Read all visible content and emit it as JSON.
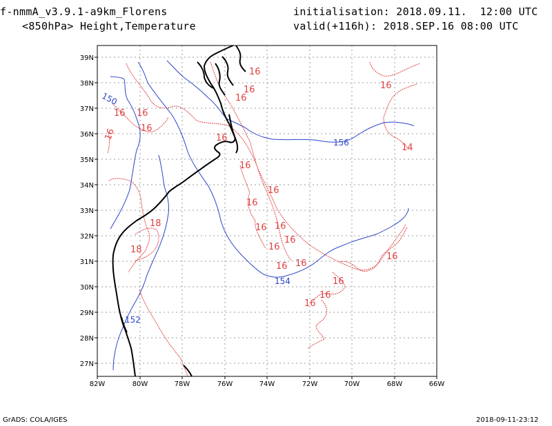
{
  "header": {
    "model": "f-nmmA_v3.9.1-a9km_Florens",
    "field": "<850hPa> Height,Temperature",
    "init": "initialisation: 2018.09.11.  12:00 UTC",
    "valid": "valid(+116h): 2018.SEP.16 08:00 UTC"
  },
  "footer": {
    "credit": "GrADS: COLA/IGES",
    "timestamp": "2018-09-11-23:12"
  },
  "map": {
    "lon_range": [
      -82,
      -66
    ],
    "lat_range": [
      26.5,
      39.5
    ],
    "lon_ticks": [
      "82W",
      "80W",
      "78W",
      "76W",
      "74W",
      "72W",
      "70W",
      "68W",
      "66W"
    ],
    "lat_ticks": [
      "27N",
      "28N",
      "29N",
      "30N",
      "31N",
      "32N",
      "33N",
      "34N",
      "35N",
      "36N",
      "37N",
      "38N",
      "39N"
    ],
    "grid": true,
    "colors": {
      "height": "#2b44c8",
      "temperature": "#e04040",
      "coast": "#000000",
      "grid": "#9a9a9a"
    },
    "height_labels": [
      "150",
      "152",
      "154",
      "156"
    ],
    "temperature_labels": [
      "16",
      "16",
      "16",
      "16",
      "16",
      "16",
      "16",
      "16",
      "16",
      "16",
      "16",
      "16",
      "16",
      "16",
      "16",
      "16",
      "16",
      "16",
      "16",
      "16",
      "16",
      "16",
      "14",
      "18",
      "18"
    ]
  }
}
